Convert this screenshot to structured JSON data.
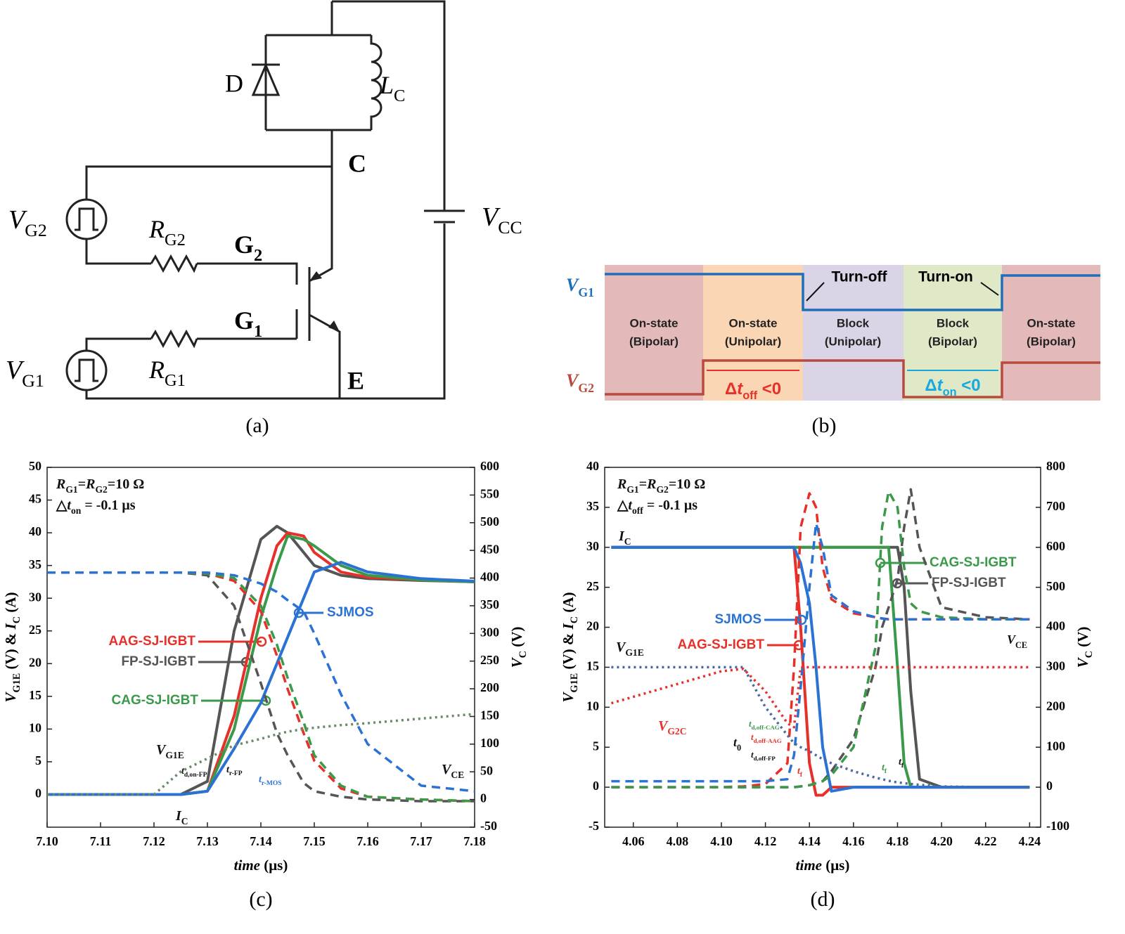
{
  "circuit": {
    "caption": "(a)",
    "D": "D",
    "LC": [
      {
        "i": "L"
      },
      {
        "sub": "C"
      }
    ],
    "C": "C",
    "VG2": [
      {
        "i": "V"
      },
      {
        "sub": "G2"
      }
    ],
    "RG2": [
      {
        "i": "R"
      },
      {
        "sub": "G2"
      }
    ],
    "G2": [
      {
        "text": "G"
      },
      {
        "sub": "2"
      }
    ],
    "VCC": [
      {
        "i": "V"
      },
      {
        "sub": "CC"
      }
    ],
    "G1": [
      {
        "text": "G"
      },
      {
        "sub": "1"
      }
    ],
    "VG1": [
      {
        "i": "V"
      },
      {
        "sub": "G1"
      }
    ],
    "RG1": [
      {
        "i": "R"
      },
      {
        "sub": "G1"
      }
    ],
    "E": "E"
  },
  "timing": {
    "caption": "(b)",
    "vg1": [
      {
        "i": "V"
      },
      {
        "sub": "G1"
      }
    ],
    "vg2": [
      {
        "i": "V"
      },
      {
        "sub": "G2"
      }
    ],
    "states": [
      [
        "On-state",
        "(Bipolar)"
      ],
      [
        "On-state",
        "(Unipolar)"
      ],
      [
        "Block",
        "(Unipolar)"
      ],
      [
        "Block",
        "(Bipolar)"
      ],
      [
        "On-state",
        "(Bipolar)"
      ]
    ],
    "turn_off": "Turn-off",
    "turn_on": "Turn-on",
    "dt_off": [
      {
        "text": "Δ"
      },
      {
        "i": "t"
      },
      {
        "sub": "off"
      },
      {
        "text": " <0"
      }
    ],
    "dt_on": [
      {
        "text": "Δ"
      },
      {
        "i": "t"
      },
      {
        "sub": "on"
      },
      {
        "text": " <0"
      }
    ]
  },
  "chart_data": [
    {
      "type": "line",
      "caption": "(c)",
      "xlabel": [
        {
          "i": "time"
        },
        {
          "text": " (μs)"
        }
      ],
      "ylabel": [
        {
          "i": "V"
        },
        {
          "sub": "G1E"
        },
        {
          "text": " (V) & "
        },
        {
          "i": "I"
        },
        {
          "sub": "C"
        },
        {
          "text": " (A)"
        }
      ],
      "y2label": [
        {
          "i": "V"
        },
        {
          "sub": "C"
        },
        {
          "text": " (V)"
        }
      ],
      "xlim": [
        7.1,
        7.18
      ],
      "xticks": [
        {
          "value": 7.1,
          "label": "7.10"
        },
        7.11,
        7.12,
        7.13,
        7.14,
        7.15,
        7.16,
        7.17,
        7.18
      ],
      "ylim": [
        -5,
        50
      ],
      "yticks": [
        0,
        5,
        10,
        15,
        20,
        25,
        30,
        35,
        40,
        45,
        50
      ],
      "y2lim": [
        -50,
        600
      ],
      "y2ticks": [
        -50,
        0,
        50,
        100,
        150,
        200,
        250,
        300,
        350,
        400,
        450,
        500,
        550,
        600
      ],
      "x": [
        7.1,
        7.12,
        7.125,
        7.13,
        7.135,
        7.14,
        7.143,
        7.145,
        7.148,
        7.15,
        7.155,
        7.16,
        7.17,
        7.18
      ],
      "series": [
        {
          "name": "FP-SJ-IGBT",
          "color": "#555555",
          "style": "solid",
          "values": [
            0,
            0,
            0,
            2,
            25,
            39,
            41,
            40,
            37,
            35,
            33.5,
            33,
            32.7,
            32.5
          ]
        },
        {
          "name": "AAG-SJ-IGBT",
          "color": "#e8302a",
          "style": "solid",
          "values": [
            0,
            0,
            0,
            0.5,
            12,
            30,
            38,
            40,
            39.5,
            37,
            34,
            33.2,
            32.8,
            32.5
          ]
        },
        {
          "name": "CAG-SJ-IGBT",
          "color": "#3a9a4a",
          "style": "solid",
          "values": [
            0,
            0,
            0,
            0.5,
            10,
            27,
            35,
            39.5,
            39,
            38,
            35,
            33.5,
            32.8,
            32.5
          ]
        },
        {
          "name": "SJMOS",
          "color": "#2a72d4",
          "style": "solid",
          "values": [
            0,
            0,
            0,
            0.5,
            7,
            14,
            20,
            24,
            30,
            34,
            35.5,
            34,
            33,
            32.6
          ]
        },
        {
          "color": "#555555",
          "style": "dash",
          "axis": "y2",
          "values": [
            410,
            410,
            410,
            405,
            350,
            210,
            120,
            80,
            30,
            15,
            5,
            0,
            -3,
            -3
          ]
        },
        {
          "color": "#e8302a",
          "style": "dash",
          "axis": "y2",
          "values": [
            410,
            410,
            410,
            408,
            395,
            340,
            260,
            200,
            120,
            70,
            20,
            5,
            0,
            -3
          ]
        },
        {
          "color": "#3a9a4a",
          "style": "dash",
          "axis": "y2",
          "values": [
            410,
            410,
            410,
            408,
            400,
            350,
            280,
            220,
            140,
            80,
            25,
            5,
            0,
            -3
          ]
        },
        {
          "color": "#2a72d4",
          "style": "dash",
          "axis": "y2",
          "values": [
            410,
            410,
            410,
            410,
            405,
            390,
            375,
            360,
            340,
            300,
            190,
            100,
            25,
            15
          ]
        },
        {
          "color": "#6a8a6a",
          "style": "dot",
          "values": [
            0,
            0,
            3.5,
            5.5,
            7.5,
            8.5,
            9.2,
            9.6,
            10,
            10.2,
            10.6,
            10.9,
            11.6,
            12.3
          ]
        }
      ],
      "annotations": [
        [
          {
            "i": "R"
          },
          {
            "sub": "G1"
          },
          {
            "text": "="
          },
          {
            "i": "R"
          },
          {
            "sub": "G2"
          },
          {
            "text": "=10 Ω"
          }
        ],
        [
          {
            "text": "△"
          },
          {
            "i": "t"
          },
          {
            "sub": "on"
          },
          {
            "text": " = -0.1 μs"
          }
        ],
        [
          {
            "i": "V"
          },
          {
            "sub": "G1E"
          }
        ],
        [
          {
            "i": "I"
          },
          {
            "sub": "C"
          }
        ],
        [
          {
            "i": "V"
          },
          {
            "sub": "CE"
          }
        ],
        [
          {
            "i": "t"
          },
          {
            "sub": "d,on-FP"
          }
        ],
        [
          {
            "i": "t"
          },
          {
            "sub": "r-FP"
          }
        ],
        [
          {
            "i": "t"
          },
          {
            "sub": "r-MOS"
          }
        ]
      ]
    },
    {
      "type": "line",
      "caption": "(d)",
      "xlabel": [
        {
          "i": "time"
        },
        {
          "text": " (μs)"
        }
      ],
      "ylabel": [
        {
          "i": "V"
        },
        {
          "sub": "G1E"
        },
        {
          "text": " (V) & "
        },
        {
          "i": "I"
        },
        {
          "sub": "C"
        },
        {
          "text": " (A)"
        }
      ],
      "y2label": [
        {
          "i": "V"
        },
        {
          "sub": "C"
        },
        {
          "text": " (V)"
        }
      ],
      "xlim": [
        4.047,
        4.245
      ],
      "xticks": [
        4.06,
        4.08,
        {
          "value": 4.1,
          "label": "4.10"
        },
        4.12,
        4.14,
        4.16,
        4.18,
        {
          "value": 4.2,
          "label": "4.20"
        },
        4.22,
        4.24
      ],
      "ylim": [
        -5,
        40
      ],
      "yticks": [
        -5,
        0,
        5,
        10,
        15,
        20,
        25,
        30,
        35,
        40
      ],
      "y2lim": [
        -100,
        800
      ],
      "y2ticks": [
        -100,
        0,
        100,
        200,
        300,
        400,
        500,
        600,
        700,
        800
      ],
      "x": [
        4.05,
        4.1,
        4.11,
        4.12,
        4.13,
        4.133,
        4.136,
        4.14,
        4.143,
        4.146,
        4.15,
        4.16,
        4.17,
        4.173,
        4.176,
        4.18,
        4.183,
        4.186,
        4.19,
        4.2,
        4.22,
        4.24
      ],
      "series": [
        {
          "name": "FP-SJ-IGBT",
          "color": "#555555",
          "style": "solid",
          "values": [
            30,
            30,
            30,
            30,
            30,
            30,
            30,
            30,
            30,
            30,
            30,
            30,
            30,
            30,
            30,
            30,
            25,
            12,
            1,
            0,
            0,
            0
          ]
        },
        {
          "name": "AAG-SJ-IGBT",
          "color": "#e8302a",
          "style": "solid",
          "values": [
            30,
            30,
            30,
            30,
            30,
            30,
            20,
            3,
            -1,
            -1,
            0,
            0,
            0,
            0,
            0,
            0,
            0,
            0,
            0,
            0,
            0,
            0
          ]
        },
        {
          "name": "CAG-SJ-IGBT",
          "color": "#3a9a4a",
          "style": "solid",
          "values": [
            30,
            30,
            30,
            30,
            30,
            30,
            30,
            30,
            30,
            30,
            30,
            30,
            30,
            30,
            30,
            15,
            3,
            0,
            0,
            0,
            0,
            0
          ]
        },
        {
          "name": "SJMOS",
          "color": "#2a72d4",
          "style": "solid",
          "values": [
            30,
            30,
            30,
            30,
            30,
            30,
            28,
            23,
            15,
            5,
            -0.5,
            0,
            0,
            0,
            0,
            0,
            0,
            0,
            0,
            0,
            0,
            0
          ]
        },
        {
          "color": "#555555",
          "style": "dash",
          "axis": "y2",
          "values": [
            0,
            0,
            0,
            0,
            0,
            0,
            2,
            5,
            10,
            15,
            40,
            120,
            300,
            400,
            450,
            520,
            650,
            745,
            600,
            450,
            425,
            420
          ]
        },
        {
          "color": "#e8302a",
          "style": "dash",
          "axis": "y2",
          "values": [
            0,
            0,
            2,
            8,
            60,
            300,
            650,
            735,
            700,
            550,
            470,
            435,
            425,
            422,
            420,
            420,
            420,
            420,
            420,
            420,
            420,
            420
          ]
        },
        {
          "color": "#3a9a4a",
          "style": "dash",
          "axis": "y2",
          "values": [
            0,
            0,
            0,
            0,
            0,
            0,
            2,
            5,
            10,
            15,
            30,
            100,
            350,
            650,
            740,
            700,
            550,
            460,
            440,
            425,
            420,
            420
          ]
        },
        {
          "color": "#2a72d4",
          "style": "dash",
          "axis": "y2",
          "values": [
            15,
            15,
            15,
            15,
            20,
            80,
            250,
            500,
            660,
            600,
            480,
            440,
            425,
            422,
            420,
            420,
            420,
            420,
            420,
            420,
            420,
            420
          ]
        },
        {
          "color": "#4a6aa0",
          "style": "dot",
          "values": [
            15,
            15,
            15,
            10,
            6.5,
            5.5,
            5,
            4.5,
            4,
            3.5,
            3,
            2,
            1.2,
            1,
            0.8,
            0.6,
            0.5,
            0.4,
            0.3,
            0.1,
            0,
            0
          ]
        },
        {
          "color": "#e8302a",
          "style": "dot",
          "values": [
            10.5,
            14.5,
            14.8,
            12,
            8,
            7.5,
            15,
            15,
            15,
            15,
            15,
            15,
            15,
            15,
            15,
            15,
            15,
            15,
            15,
            15,
            15,
            15
          ]
        }
      ],
      "annotations": [
        [
          {
            "i": "R"
          },
          {
            "sub": "G1"
          },
          {
            "text": "="
          },
          {
            "i": "R"
          },
          {
            "sub": "G2"
          },
          {
            "text": "=10 Ω"
          }
        ],
        [
          {
            "text": "△"
          },
          {
            "i": "t"
          },
          {
            "sub": "off"
          },
          {
            "text": " = -0.1 μs"
          }
        ],
        [
          {
            "i": "I"
          },
          {
            "sub": "C"
          }
        ],
        [
          {
            "i": "V"
          },
          {
            "sub": "G1E"
          }
        ],
        [
          {
            "i": "V"
          },
          {
            "sub": "G2C"
          }
        ],
        [
          {
            "i": "V"
          },
          {
            "sub": "CE"
          }
        ],
        [
          {
            "i": "t"
          },
          {
            "sub": "0"
          }
        ],
        [
          {
            "i": "t"
          },
          {
            "sub": "d,off-AAG"
          }
        ],
        [
          {
            "i": "t"
          },
          {
            "sub": "d,off-CAG"
          }
        ],
        [
          {
            "i": "t"
          },
          {
            "sub": "d,off-FP"
          }
        ],
        [
          {
            "i": "t"
          },
          {
            "sub": "f"
          }
        ],
        [
          {
            "i": "t"
          },
          {
            "sub": "f"
          }
        ],
        [
          {
            "i": "t"
          },
          {
            "sub": "f"
          }
        ]
      ]
    }
  ]
}
